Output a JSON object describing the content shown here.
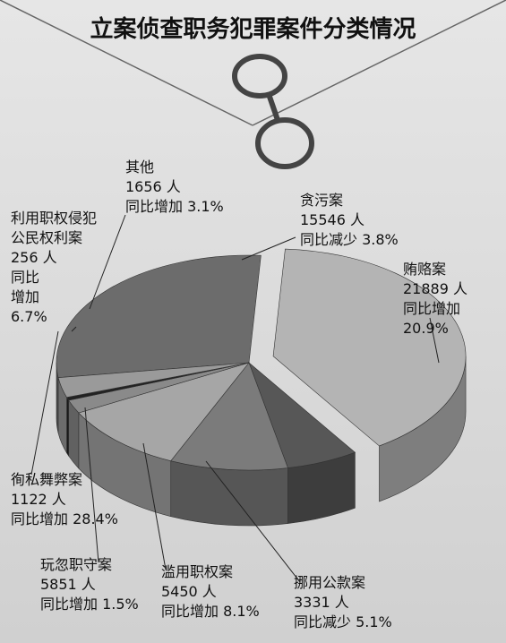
{
  "chart_data": {
    "type": "pie",
    "title": "立案侦查职务犯罪案件分类情况",
    "categories": [
      "贪污案",
      "贿赂案",
      "挪用公款案",
      "滥用职权案",
      "玩忽职守案",
      "徇私舞弊案",
      "利用职权侵犯公民权利案",
      "其他"
    ],
    "values": [
      15546,
      21889,
      3331,
      5450,
      5851,
      1122,
      256,
      1656
    ],
    "value_labels": [
      "15546 人",
      "21889 人",
      "3331 人",
      "5450 人",
      "5851 人",
      "1122 人",
      "256 人",
      "1656 人"
    ],
    "changes": [
      "同比减少 3.8%",
      "同比增加 20.9%",
      "同比减少 5.1%",
      "同比增加 8.1%",
      "同比增加 1.5%",
      "同比增加 28.4%",
      "同比增加 6.7%",
      "同比增加 3.1%"
    ],
    "colors": [
      "#6c6c6c",
      "#b4b4b4",
      "#575757",
      "#7b7b7b",
      "#a6a6a6",
      "#8a8a8a",
      "#222222",
      "#9a9a9a"
    ]
  }
}
